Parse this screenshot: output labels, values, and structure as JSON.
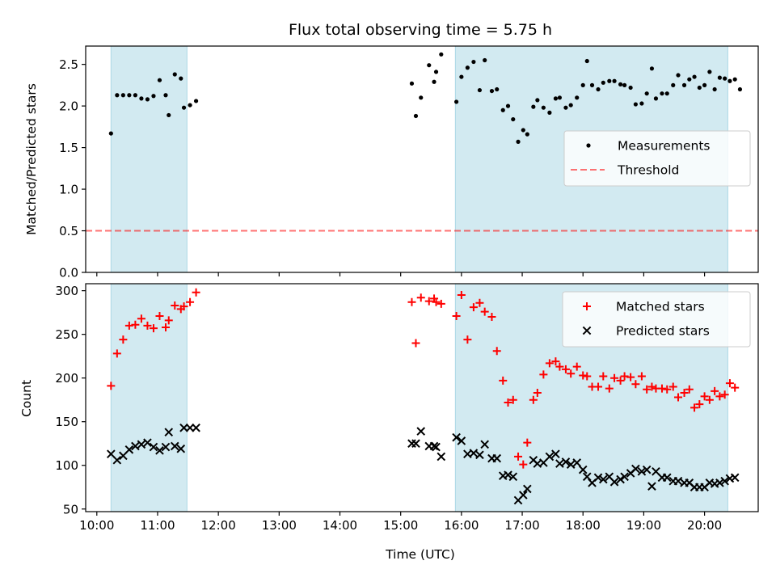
{
  "figure": {
    "title": "Flux total observing time = 5.75 h",
    "xlabel": "Time (UTC)"
  },
  "colors": {
    "shade": "#add8e6",
    "measurement": "#000000",
    "threshold": "#ff0000",
    "matched": "#ff0000",
    "predicted": "#000000",
    "axes": "#000000"
  },
  "chart_data": [
    {
      "id": "top",
      "type": "scatter",
      "ylabel": "Matched/Predicted stars",
      "xlim": [
        "09:49",
        "20:53"
      ],
      "ylim": [
        0,
        2.72
      ],
      "xticks": [
        "10:00",
        "11:00",
        "12:00",
        "13:00",
        "14:00",
        "15:00",
        "16:00",
        "17:00",
        "18:00",
        "19:00",
        "20:00"
      ],
      "xtick_labels_shown": false,
      "yticks": [
        0.0,
        0.5,
        1.0,
        1.5,
        2.0,
        2.5
      ],
      "ytick_labels": [
        "0.0",
        "0.5",
        "1.0",
        "1.5",
        "2.0",
        "2.5"
      ],
      "shaded_spans": [
        [
          "10:14",
          "11:29"
        ],
        [
          "15:54",
          "20:23"
        ]
      ],
      "legend": {
        "location": "center-right",
        "entries": [
          "Measurements",
          "Threshold"
        ]
      },
      "threshold": {
        "name": "Threshold",
        "y": 0.5,
        "style": "dashed"
      },
      "series": [
        {
          "name": "Measurements",
          "marker": "dot",
          "points": [
            [
              "10:14",
              1.67
            ],
            [
              "10:20",
              2.13
            ],
            [
              "10:26",
              2.13
            ],
            [
              "10:32",
              2.13
            ],
            [
              "10:38",
              2.13
            ],
            [
              "10:44",
              2.09
            ],
            [
              "10:50",
              2.08
            ],
            [
              "10:56",
              2.12
            ],
            [
              "11:02",
              2.31
            ],
            [
              "11:08",
              2.13
            ],
            [
              "11:11",
              1.89
            ],
            [
              "11:17",
              2.38
            ],
            [
              "11:23",
              2.33
            ],
            [
              "11:26",
              1.98
            ],
            [
              "11:32",
              2.01
            ],
            [
              "11:38",
              2.06
            ],
            [
              "15:11",
              2.27
            ],
            [
              "15:15",
              1.88
            ],
            [
              "15:20",
              2.1
            ],
            [
              "15:28",
              2.49
            ],
            [
              "15:33",
              2.29
            ],
            [
              "15:35",
              2.41
            ],
            [
              "15:40",
              2.62
            ],
            [
              "15:55",
              2.05
            ],
            [
              "16:00",
              2.35
            ],
            [
              "16:06",
              2.46
            ],
            [
              "16:12",
              2.53
            ],
            [
              "16:18",
              2.19
            ],
            [
              "16:23",
              2.55
            ],
            [
              "16:30",
              2.18
            ],
            [
              "16:35",
              2.2
            ],
            [
              "16:41",
              1.95
            ],
            [
              "16:46",
              2.0
            ],
            [
              "16:51",
              1.84
            ],
            [
              "16:56",
              1.57
            ],
            [
              "17:01",
              1.71
            ],
            [
              "17:05",
              1.66
            ],
            [
              "17:11",
              1.99
            ],
            [
              "17:15",
              2.07
            ],
            [
              "17:21",
              1.98
            ],
            [
              "17:27",
              1.92
            ],
            [
              "17:33",
              2.09
            ],
            [
              "17:37",
              2.1
            ],
            [
              "17:43",
              1.98
            ],
            [
              "17:48",
              2.01
            ],
            [
              "17:54",
              2.1
            ],
            [
              "18:00",
              2.25
            ],
            [
              "18:04",
              2.54
            ],
            [
              "18:09",
              2.25
            ],
            [
              "18:15",
              2.2
            ],
            [
              "18:20",
              2.28
            ],
            [
              "18:26",
              2.3
            ],
            [
              "18:31",
              2.3
            ],
            [
              "18:37",
              2.26
            ],
            [
              "18:41",
              2.25
            ],
            [
              "18:47",
              2.22
            ],
            [
              "18:52",
              2.02
            ],
            [
              "18:58",
              2.03
            ],
            [
              "19:03",
              2.15
            ],
            [
              "19:08",
              2.45
            ],
            [
              "19:12",
              2.09
            ],
            [
              "19:18",
              2.15
            ],
            [
              "19:23",
              2.15
            ],
            [
              "19:29",
              2.25
            ],
            [
              "19:34",
              2.37
            ],
            [
              "19:40",
              2.25
            ],
            [
              "19:45",
              2.32
            ],
            [
              "19:50",
              2.35
            ],
            [
              "19:55",
              2.22
            ],
            [
              "20:00",
              2.25
            ],
            [
              "20:05",
              2.41
            ],
            [
              "20:10",
              2.2
            ],
            [
              "20:15",
              2.34
            ],
            [
              "20:20",
              2.33
            ],
            [
              "20:25",
              2.3
            ],
            [
              "20:30",
              2.32
            ],
            [
              "20:35",
              2.2
            ]
          ]
        }
      ]
    },
    {
      "id": "bottom",
      "type": "scatter",
      "ylabel": "Count",
      "xlim": [
        "09:49",
        "20:53"
      ],
      "ylim": [
        47,
        308
      ],
      "xticks": [
        "10:00",
        "11:00",
        "12:00",
        "13:00",
        "14:00",
        "15:00",
        "16:00",
        "17:00",
        "18:00",
        "19:00",
        "20:00"
      ],
      "xtick_labels_shown": true,
      "yticks": [
        50,
        100,
        150,
        200,
        250,
        300
      ],
      "ytick_labels": [
        "50",
        "100",
        "150",
        "200",
        "250",
        "300"
      ],
      "shaded_spans": [
        [
          "10:14",
          "11:29"
        ],
        [
          "15:54",
          "20:23"
        ]
      ],
      "legend": {
        "location": "top-right",
        "entries": [
          "Matched stars",
          "Predicted stars"
        ]
      },
      "series": [
        {
          "name": "Matched stars",
          "marker": "plus",
          "points": [
            [
              "10:14",
              191
            ],
            [
              "10:20",
              228
            ],
            [
              "10:26",
              244
            ],
            [
              "10:32",
              260
            ],
            [
              "10:38",
              261
            ],
            [
              "10:44",
              268
            ],
            [
              "10:50",
              260
            ],
            [
              "10:56",
              257
            ],
            [
              "11:02",
              271
            ],
            [
              "11:08",
              258
            ],
            [
              "11:11",
              266
            ],
            [
              "11:17",
              283
            ],
            [
              "11:23",
              279
            ],
            [
              "11:26",
              282
            ],
            [
              "11:32",
              287
            ],
            [
              "11:38",
              298
            ],
            [
              "15:11",
              287
            ],
            [
              "15:15",
              240
            ],
            [
              "15:20",
              292
            ],
            [
              "15:28",
              288
            ],
            [
              "15:33",
              291
            ],
            [
              "15:35",
              287
            ],
            [
              "15:40",
              285
            ],
            [
              "15:55",
              271
            ],
            [
              "16:00",
              295
            ],
            [
              "16:06",
              244
            ],
            [
              "16:12",
              281
            ],
            [
              "16:18",
              286
            ],
            [
              "16:23",
              276
            ],
            [
              "16:30",
              270
            ],
            [
              "16:35",
              231
            ],
            [
              "16:41",
              197
            ],
            [
              "16:46",
              172
            ],
            [
              "16:51",
              175
            ],
            [
              "16:56",
              110
            ],
            [
              "17:01",
              101
            ],
            [
              "17:05",
              126
            ],
            [
              "17:11",
              175
            ],
            [
              "17:15",
              183
            ],
            [
              "17:21",
              204
            ],
            [
              "17:27",
              217
            ],
            [
              "17:33",
              219
            ],
            [
              "17:37",
              213
            ],
            [
              "17:43",
              210
            ],
            [
              "17:48",
              205
            ],
            [
              "17:54",
              213
            ],
            [
              "18:00",
              203
            ],
            [
              "18:04",
              202
            ],
            [
              "18:09",
              190
            ],
            [
              "18:15",
              190
            ],
            [
              "18:20",
              202
            ],
            [
              "18:26",
              188
            ],
            [
              "18:31",
              200
            ],
            [
              "18:37",
              197
            ],
            [
              "18:41",
              202
            ],
            [
              "18:47",
              201
            ],
            [
              "18:52",
              193
            ],
            [
              "18:58",
              202
            ],
            [
              "19:03",
              187
            ],
            [
              "19:08",
              190
            ],
            [
              "19:12",
              188
            ],
            [
              "19:18",
              188
            ],
            [
              "19:23",
              187
            ],
            [
              "19:29",
              190
            ],
            [
              "19:34",
              178
            ],
            [
              "19:40",
              183
            ],
            [
              "19:45",
              187
            ],
            [
              "19:50",
              166
            ],
            [
              "19:55",
              170
            ],
            [
              "20:00",
              179
            ],
            [
              "20:05",
              175
            ],
            [
              "20:10",
              185
            ],
            [
              "20:15",
              179
            ],
            [
              "20:20",
              181
            ],
            [
              "20:25",
              194
            ],
            [
              "20:30",
              189
            ]
          ]
        },
        {
          "name": "Predicted stars",
          "marker": "x",
          "points": [
            [
              "10:14",
              113
            ],
            [
              "10:20",
              106
            ],
            [
              "10:26",
              111
            ],
            [
              "10:32",
              118
            ],
            [
              "10:38",
              122
            ],
            [
              "10:44",
              124
            ],
            [
              "10:50",
              126
            ],
            [
              "10:56",
              121
            ],
            [
              "11:02",
              117
            ],
            [
              "11:08",
              121
            ],
            [
              "11:11",
              138
            ],
            [
              "11:17",
              122
            ],
            [
              "11:23",
              119
            ],
            [
              "11:26",
              143
            ],
            [
              "11:32",
              143
            ],
            [
              "11:38",
              143
            ],
            [
              "15:11",
              125
            ],
            [
              "15:15",
              125
            ],
            [
              "15:20",
              139
            ],
            [
              "15:28",
              122
            ],
            [
              "15:33",
              122
            ],
            [
              "15:35",
              121
            ],
            [
              "15:40",
              110
            ],
            [
              "15:55",
              132
            ],
            [
              "16:00",
              128
            ],
            [
              "16:06",
              113
            ],
            [
              "16:12",
              114
            ],
            [
              "16:18",
              112
            ],
            [
              "16:23",
              124
            ],
            [
              "16:30",
              108
            ],
            [
              "16:35",
              108
            ],
            [
              "16:41",
              88
            ],
            [
              "16:46",
              89
            ],
            [
              "16:51",
              87
            ],
            [
              "16:56",
              60
            ],
            [
              "17:01",
              66
            ],
            [
              "17:05",
              73
            ],
            [
              "17:11",
              106
            ],
            [
              "17:15",
              102
            ],
            [
              "17:21",
              103
            ],
            [
              "17:27",
              110
            ],
            [
              "17:33",
              113
            ],
            [
              "17:37",
              102
            ],
            [
              "17:43",
              104
            ],
            [
              "17:48",
              101
            ],
            [
              "17:54",
              103
            ],
            [
              "18:00",
              95
            ],
            [
              "18:04",
              87
            ],
            [
              "18:09",
              80
            ],
            [
              "18:15",
              86
            ],
            [
              "18:20",
              84
            ],
            [
              "18:26",
              87
            ],
            [
              "18:31",
              81
            ],
            [
              "18:37",
              84
            ],
            [
              "18:41",
              87
            ],
            [
              "18:47",
              91
            ],
            [
              "18:52",
              96
            ],
            [
              "18:58",
              93
            ],
            [
              "19:03",
              95
            ],
            [
              "19:08",
              76
            ],
            [
              "19:12",
              93
            ],
            [
              "19:18",
              86
            ],
            [
              "19:23",
              86
            ],
            [
              "19:29",
              82
            ],
            [
              "19:34",
              82
            ],
            [
              "19:40",
              80
            ],
            [
              "19:45",
              80
            ],
            [
              "19:50",
              75
            ],
            [
              "19:55",
              75
            ],
            [
              "20:00",
              75
            ],
            [
              "20:05",
              80
            ],
            [
              "20:10",
              79
            ],
            [
              "20:15",
              80
            ],
            [
              "20:20",
              82
            ],
            [
              "20:25",
              85
            ],
            [
              "20:30",
              86
            ]
          ]
        }
      ]
    }
  ]
}
